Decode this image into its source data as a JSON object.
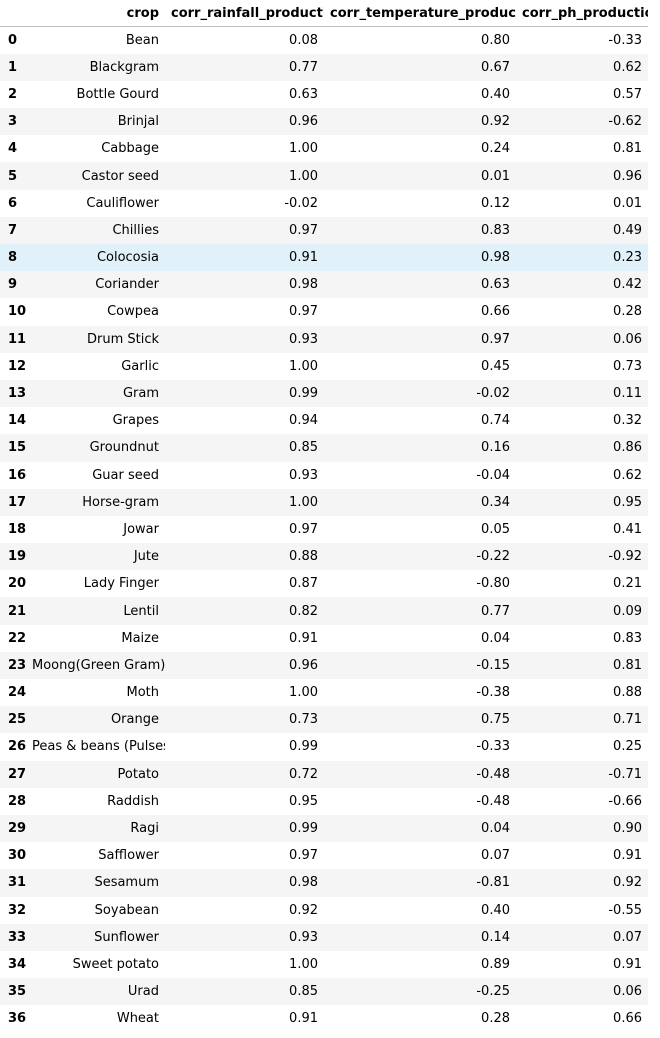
{
  "table": {
    "columns": [
      "",
      "crop",
      "corr_rainfall_production",
      "corr_temperature_production",
      "corr_ph_production"
    ],
    "highlighted_row": 8,
    "colors": {
      "stripe": "#f5f5f5",
      "hover": "#e1f1f9"
    },
    "rows": [
      {
        "idx": "0",
        "crop": "Bean",
        "rain": "0.08",
        "temp": "0.80",
        "ph": "-0.33"
      },
      {
        "idx": "1",
        "crop": "Blackgram",
        "rain": "0.77",
        "temp": "0.67",
        "ph": "0.62"
      },
      {
        "idx": "2",
        "crop": "Bottle Gourd",
        "rain": "0.63",
        "temp": "0.40",
        "ph": "0.57"
      },
      {
        "idx": "3",
        "crop": "Brinjal",
        "rain": "0.96",
        "temp": "0.92",
        "ph": "-0.62"
      },
      {
        "idx": "4",
        "crop": "Cabbage",
        "rain": "1.00",
        "temp": "0.24",
        "ph": "0.81"
      },
      {
        "idx": "5",
        "crop": "Castor seed",
        "rain": "1.00",
        "temp": "0.01",
        "ph": "0.96"
      },
      {
        "idx": "6",
        "crop": "Cauliflower",
        "rain": "-0.02",
        "temp": "0.12",
        "ph": "0.01"
      },
      {
        "idx": "7",
        "crop": "Chillies",
        "rain": "0.97",
        "temp": "0.83",
        "ph": "0.49"
      },
      {
        "idx": "8",
        "crop": "Colocosia",
        "rain": "0.91",
        "temp": "0.98",
        "ph": "0.23"
      },
      {
        "idx": "9",
        "crop": "Coriander",
        "rain": "0.98",
        "temp": "0.63",
        "ph": "0.42"
      },
      {
        "idx": "10",
        "crop": "Cowpea",
        "rain": "0.97",
        "temp": "0.66",
        "ph": "0.28"
      },
      {
        "idx": "11",
        "crop": "Drum Stick",
        "rain": "0.93",
        "temp": "0.97",
        "ph": "0.06"
      },
      {
        "idx": "12",
        "crop": "Garlic",
        "rain": "1.00",
        "temp": "0.45",
        "ph": "0.73"
      },
      {
        "idx": "13",
        "crop": "Gram",
        "rain": "0.99",
        "temp": "-0.02",
        "ph": "0.11"
      },
      {
        "idx": "14",
        "crop": "Grapes",
        "rain": "0.94",
        "temp": "0.74",
        "ph": "0.32"
      },
      {
        "idx": "15",
        "crop": "Groundnut",
        "rain": "0.85",
        "temp": "0.16",
        "ph": "0.86"
      },
      {
        "idx": "16",
        "crop": "Guar seed",
        "rain": "0.93",
        "temp": "-0.04",
        "ph": "0.62"
      },
      {
        "idx": "17",
        "crop": "Horse-gram",
        "rain": "1.00",
        "temp": "0.34",
        "ph": "0.95"
      },
      {
        "idx": "18",
        "crop": "Jowar",
        "rain": "0.97",
        "temp": "0.05",
        "ph": "0.41"
      },
      {
        "idx": "19",
        "crop": "Jute",
        "rain": "0.88",
        "temp": "-0.22",
        "ph": "-0.92"
      },
      {
        "idx": "20",
        "crop": "Lady Finger",
        "rain": "0.87",
        "temp": "-0.80",
        "ph": "0.21"
      },
      {
        "idx": "21",
        "crop": "Lentil",
        "rain": "0.82",
        "temp": "0.77",
        "ph": "0.09"
      },
      {
        "idx": "22",
        "crop": "Maize",
        "rain": "0.91",
        "temp": "0.04",
        "ph": "0.83"
      },
      {
        "idx": "23",
        "crop": "Moong(Green Gram)",
        "rain": "0.96",
        "temp": "-0.15",
        "ph": "0.81"
      },
      {
        "idx": "24",
        "crop": "Moth",
        "rain": "1.00",
        "temp": "-0.38",
        "ph": "0.88"
      },
      {
        "idx": "25",
        "crop": "Orange",
        "rain": "0.73",
        "temp": "0.75",
        "ph": "0.71"
      },
      {
        "idx": "26",
        "crop": "Peas & beans (Pulses)",
        "rain": "0.99",
        "temp": "-0.33",
        "ph": "0.25"
      },
      {
        "idx": "27",
        "crop": "Potato",
        "rain": "0.72",
        "temp": "-0.48",
        "ph": "-0.71"
      },
      {
        "idx": "28",
        "crop": "Raddish",
        "rain": "0.95",
        "temp": "-0.48",
        "ph": "-0.66"
      },
      {
        "idx": "29",
        "crop": "Ragi",
        "rain": "0.99",
        "temp": "0.04",
        "ph": "0.90"
      },
      {
        "idx": "30",
        "crop": "Safflower",
        "rain": "0.97",
        "temp": "0.07",
        "ph": "0.91"
      },
      {
        "idx": "31",
        "crop": "Sesamum",
        "rain": "0.98",
        "temp": "-0.81",
        "ph": "0.92"
      },
      {
        "idx": "32",
        "crop": "Soyabean",
        "rain": "0.92",
        "temp": "0.40",
        "ph": "-0.55"
      },
      {
        "idx": "33",
        "crop": "Sunflower",
        "rain": "0.93",
        "temp": "0.14",
        "ph": "0.07"
      },
      {
        "idx": "34",
        "crop": "Sweet potato",
        "rain": "1.00",
        "temp": "0.89",
        "ph": "0.91"
      },
      {
        "idx": "35",
        "crop": "Urad",
        "rain": "0.85",
        "temp": "-0.25",
        "ph": "0.06"
      },
      {
        "idx": "36",
        "crop": "Wheat",
        "rain": "0.91",
        "temp": "0.28",
        "ph": "0.66"
      }
    ]
  }
}
